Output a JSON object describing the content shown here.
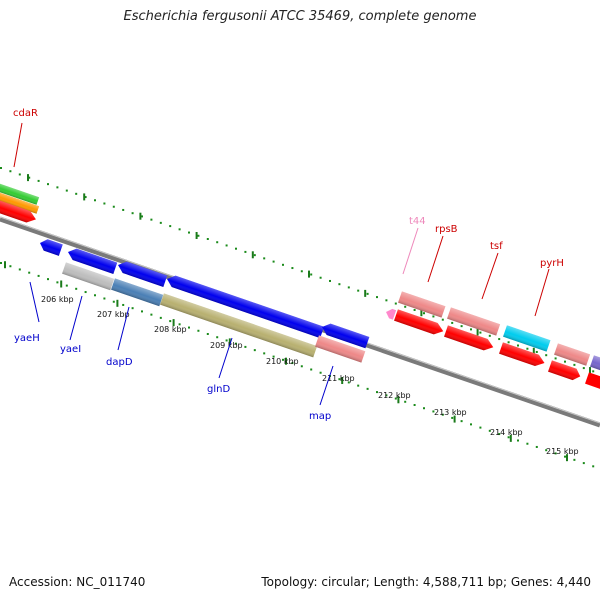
{
  "title": "Escherichia fergusonii ATCC 35469, complete genome",
  "footer": {
    "accession": "Accession: NC_011740",
    "topology": "Topology: circular; Length: 4,588,711 bp; Genes: 4,440"
  },
  "colors": {
    "backbone": "#7a7a7a",
    "tick_major": "#1a7a1a",
    "tick_minor": "#1a8a1a",
    "label_blue": "#0000cc",
    "label_red": "#cc0000",
    "label_pink": "#ee88bb"
  },
  "kbp_labels": [
    "206 kbp",
    "207 kbp",
    "208 kbp",
    "209 kbp",
    "210 kbp",
    "211 kbp",
    "212 kbp",
    "213 kbp",
    "214 kbp",
    "215 kbp"
  ],
  "gene_labels": {
    "cdaR": "cdaR",
    "yaeH": "yaeH",
    "yaeI": "yaeI",
    "dapD": "dapD",
    "glnD": "glnD",
    "map": "map",
    "t44": "t44",
    "rpsB": "rpsB",
    "tsf": "tsf",
    "pyrH": "pyrH"
  }
}
